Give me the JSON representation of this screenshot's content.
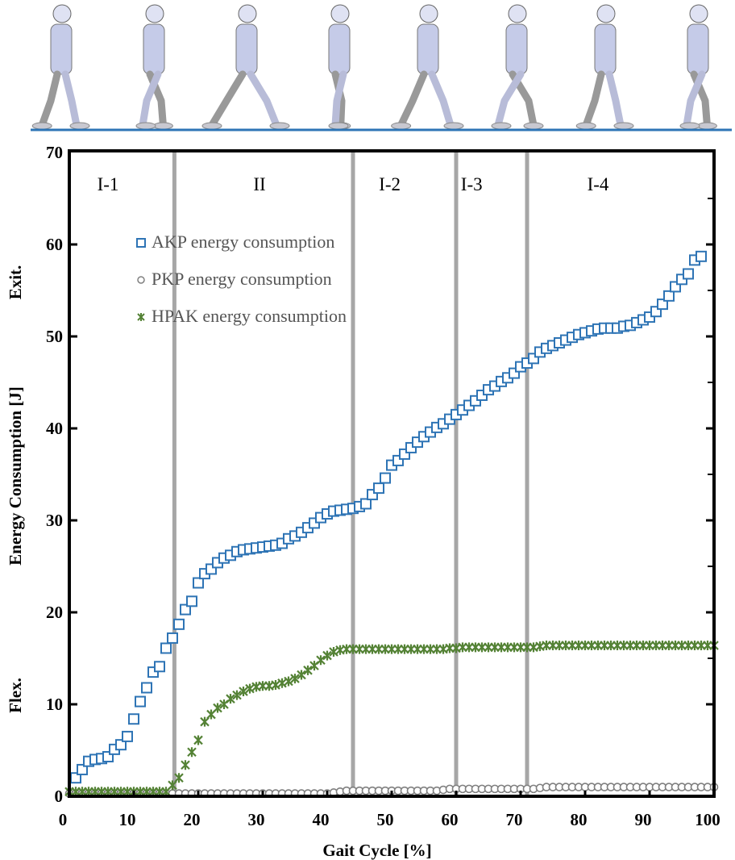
{
  "chart_data": {
    "type": "scatter",
    "title": "",
    "xlabel": "Gait Cycle [%]",
    "ylabel": "Energy Consumption [J]",
    "ylabel_top": "Exit.",
    "ylabel_bottom": "Flex.",
    "xlim": [
      0,
      100
    ],
    "ylim": [
      0,
      70
    ],
    "xticks": [
      0,
      10,
      20,
      30,
      40,
      50,
      60,
      70,
      80,
      90,
      100
    ],
    "yticks": [
      0,
      10,
      20,
      30,
      40,
      50,
      60,
      70
    ],
    "grid": false,
    "legend_position": "top-left",
    "phase_boundaries": [
      16.3,
      44,
      60,
      71
    ],
    "phases": [
      {
        "label": "I-1",
        "center": 6
      },
      {
        "label": "II",
        "center": 29.5
      },
      {
        "label": "I-2",
        "center": 49.7
      },
      {
        "label": "I-3",
        "center": 62.4
      },
      {
        "label": "I-4",
        "center": 82
      }
    ],
    "series": [
      {
        "name": "AKP energy consumption",
        "marker": "square",
        "color": "#2e74b5",
        "x": [
          1,
          2,
          3,
          4,
          5,
          6,
          7,
          8,
          9,
          10,
          11,
          12,
          13,
          14,
          15,
          16,
          17,
          18,
          19,
          20,
          21,
          22,
          23,
          24,
          25,
          26,
          27,
          28,
          29,
          30,
          31,
          32,
          33,
          34,
          35,
          36,
          37,
          38,
          39,
          40,
          41,
          42,
          43,
          44,
          45,
          46,
          47,
          48,
          49,
          50,
          51,
          52,
          53,
          54,
          55,
          56,
          57,
          58,
          59,
          60,
          61,
          62,
          63,
          64,
          65,
          66,
          67,
          68,
          69,
          70,
          71,
          72,
          73,
          74,
          75,
          76,
          77,
          78,
          79,
          80,
          81,
          82,
          83,
          84,
          85,
          86,
          87,
          88,
          89,
          90,
          91,
          92,
          93,
          94,
          95,
          96,
          97,
          98
        ],
        "values": [
          2.0,
          2.9,
          3.8,
          4.0,
          4.1,
          4.3,
          5.1,
          5.6,
          6.5,
          8.4,
          10.3,
          11.8,
          13.5,
          14.1,
          16.1,
          17.2,
          18.7,
          20.3,
          21.2,
          23.2,
          24.2,
          24.7,
          25.4,
          25.9,
          26.2,
          26.6,
          26.8,
          26.9,
          27.0,
          27.1,
          27.2,
          27.3,
          27.5,
          28.0,
          28.3,
          28.7,
          29.2,
          29.7,
          30.3,
          30.7,
          31.0,
          31.1,
          31.2,
          31.3,
          31.5,
          31.8,
          32.8,
          33.5,
          34.6,
          36.0,
          36.5,
          37.2,
          37.9,
          38.5,
          39.1,
          39.6,
          40.1,
          40.5,
          41.0,
          41.5,
          42.0,
          42.5,
          43.0,
          43.6,
          44.2,
          44.6,
          45.1,
          45.5,
          46.0,
          46.7,
          47.1,
          47.6,
          48.3,
          48.7,
          49.0,
          49.3,
          49.6,
          49.9,
          50.2,
          50.4,
          50.6,
          50.8,
          50.9,
          50.9,
          50.9,
          51.1,
          51.2,
          51.5,
          51.8,
          52.1,
          52.7,
          53.5,
          54.4,
          55.4,
          56.2,
          56.8,
          58.3,
          58.7
        ]
      },
      {
        "name": "PKP energy consumption",
        "marker": "circle",
        "color": "#808080",
        "x": [
          0,
          1,
          2,
          3,
          4,
          5,
          6,
          7,
          8,
          9,
          10,
          11,
          12,
          13,
          14,
          15,
          16,
          17,
          18,
          19,
          20,
          21,
          22,
          23,
          24,
          25,
          26,
          27,
          28,
          29,
          30,
          31,
          32,
          33,
          34,
          35,
          36,
          37,
          38,
          39,
          40,
          41,
          42,
          43,
          44,
          45,
          46,
          47,
          48,
          49,
          50,
          51,
          52,
          53,
          54,
          55,
          56,
          57,
          58,
          59,
          60,
          61,
          62,
          63,
          64,
          65,
          66,
          67,
          68,
          69,
          70,
          71,
          72,
          73,
          74,
          75,
          76,
          77,
          78,
          79,
          80,
          81,
          82,
          83,
          84,
          85,
          86,
          87,
          88,
          89,
          90,
          91,
          92,
          93,
          94,
          95,
          96,
          97,
          98,
          99,
          100
        ],
        "values": [
          0.3,
          0.3,
          0.3,
          0.3,
          0.3,
          0.3,
          0.3,
          0.3,
          0.3,
          0.3,
          0.3,
          0.3,
          0.3,
          0.3,
          0.3,
          0.3,
          0.3,
          0.3,
          0.3,
          0.3,
          0.3,
          0.3,
          0.3,
          0.3,
          0.3,
          0.3,
          0.3,
          0.3,
          0.3,
          0.3,
          0.3,
          0.3,
          0.3,
          0.3,
          0.3,
          0.3,
          0.3,
          0.3,
          0.3,
          0.3,
          0.3,
          0.4,
          0.5,
          0.6,
          0.6,
          0.6,
          0.6,
          0.6,
          0.6,
          0.6,
          0.6,
          0.6,
          0.6,
          0.6,
          0.6,
          0.6,
          0.6,
          0.6,
          0.7,
          0.8,
          0.8,
          0.8,
          0.8,
          0.8,
          0.8,
          0.8,
          0.8,
          0.8,
          0.8,
          0.8,
          0.8,
          0.8,
          0.8,
          0.9,
          1.0,
          1.0,
          1.0,
          1.0,
          1.0,
          1.0,
          1.0,
          1.0,
          1.0,
          1.0,
          1.0,
          1.0,
          1.0,
          1.0,
          1.0,
          1.0,
          1.0,
          1.0,
          1.0,
          1.0,
          1.0,
          1.0,
          1.0,
          1.0,
          1.0,
          1.0,
          1.0
        ]
      },
      {
        "name": "HPAK energy consumption",
        "marker": "x",
        "color": "#548235",
        "x": [
          0,
          1,
          2,
          3,
          4,
          5,
          6,
          7,
          8,
          9,
          10,
          11,
          12,
          13,
          14,
          15,
          16,
          17,
          18,
          19,
          20,
          21,
          22,
          23,
          24,
          25,
          26,
          27,
          28,
          29,
          30,
          31,
          32,
          33,
          34,
          35,
          36,
          37,
          38,
          39,
          40,
          41,
          42,
          43,
          44,
          45,
          46,
          47,
          48,
          49,
          50,
          51,
          52,
          53,
          54,
          55,
          56,
          57,
          58,
          59,
          60,
          61,
          62,
          63,
          64,
          65,
          66,
          67,
          68,
          69,
          70,
          71,
          72,
          73,
          74,
          75,
          76,
          77,
          78,
          79,
          80,
          81,
          82,
          83,
          84,
          85,
          86,
          87,
          88,
          89,
          90,
          91,
          92,
          93,
          94,
          95,
          96,
          97,
          98,
          99,
          100
        ],
        "values": [
          0.5,
          0.5,
          0.5,
          0.5,
          0.5,
          0.5,
          0.5,
          0.5,
          0.5,
          0.5,
          0.5,
          0.5,
          0.5,
          0.5,
          0.5,
          0.5,
          1.2,
          2.0,
          3.4,
          4.8,
          6.1,
          8.1,
          8.9,
          9.6,
          10.0,
          10.6,
          11.0,
          11.4,
          11.7,
          11.9,
          12.0,
          12.0,
          12.1,
          12.3,
          12.5,
          12.8,
          13.2,
          13.7,
          14.2,
          14.8,
          15.3,
          15.7,
          15.9,
          16.0,
          16.0,
          16.0,
          16.0,
          16.0,
          16.0,
          16.0,
          16.0,
          16.0,
          16.0,
          16.0,
          16.0,
          16.0,
          16.0,
          16.0,
          16.0,
          16.1,
          16.1,
          16.2,
          16.2,
          16.2,
          16.2,
          16.2,
          16.2,
          16.2,
          16.2,
          16.2,
          16.2,
          16.2,
          16.2,
          16.3,
          16.4,
          16.4,
          16.4,
          16.4,
          16.4,
          16.4,
          16.4,
          16.4,
          16.4,
          16.4,
          16.4,
          16.4,
          16.4,
          16.4,
          16.4,
          16.4,
          16.4,
          16.4,
          16.4,
          16.4,
          16.4,
          16.4,
          16.4,
          16.4,
          16.4,
          16.4,
          16.4
        ]
      }
    ]
  },
  "colors": {
    "ground": "#2e75b6",
    "figure_fill": "#c5cbe8",
    "boundary": "#a6a6a6"
  }
}
